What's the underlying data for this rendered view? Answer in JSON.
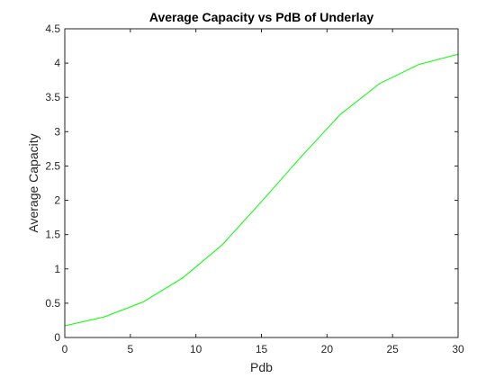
{
  "chart_data": {
    "type": "line",
    "title": "Average Capacity vs PdB of Underlay",
    "xlabel": "Pdb",
    "ylabel": "Average Capacity",
    "xlim": [
      0,
      30
    ],
    "ylim": [
      0,
      4.5
    ],
    "x_ticks": [
      0,
      5,
      10,
      15,
      20,
      25,
      30
    ],
    "y_ticks": [
      0,
      0.5,
      1,
      1.5,
      2,
      2.5,
      3,
      3.5,
      4,
      4.5
    ],
    "x_tick_labels": [
      "0",
      "5",
      "10",
      "15",
      "20",
      "25",
      "30"
    ],
    "y_tick_labels": [
      "0",
      "0.5",
      "1",
      "1.5",
      "2",
      "2.5",
      "3",
      "3.5",
      "4",
      "4.5"
    ],
    "grid": false,
    "series": [
      {
        "color": "#00ff00",
        "x": [
          0,
          3,
          6,
          9,
          12,
          15,
          18,
          21,
          24,
          27,
          30
        ],
        "y": [
          0.17,
          0.3,
          0.52,
          0.87,
          1.35,
          1.98,
          2.63,
          3.25,
          3.7,
          3.98,
          4.13
        ]
      }
    ]
  }
}
